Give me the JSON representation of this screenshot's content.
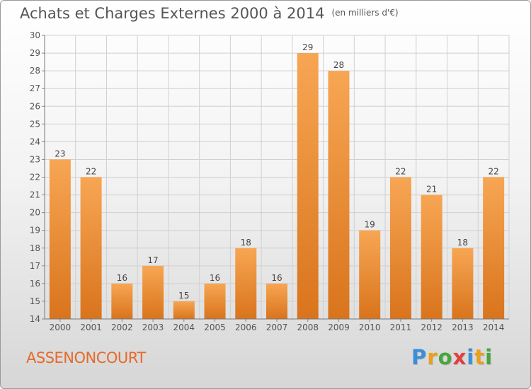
{
  "header": {
    "title": "Achats et Charges Externes 2000 à 2014",
    "unit": "(en milliers d'€)"
  },
  "footer": {
    "place": "ASSENONCOURT",
    "logo": "Proxiti"
  },
  "colors": {
    "bar_top": "#f7a654",
    "bar_bottom": "#d9741c",
    "grid": "#d0d0d0",
    "place_text": "#e56a2c"
  },
  "chart_data": {
    "type": "bar",
    "title": "Achats et Charges Externes 2000 à 2014",
    "subtitle": "(en milliers d'€)",
    "categories": [
      "2000",
      "2001",
      "2002",
      "2003",
      "2004",
      "2005",
      "2006",
      "2007",
      "2008",
      "2009",
      "2010",
      "2011",
      "2012",
      "2013",
      "2014"
    ],
    "values": [
      23,
      22,
      16,
      17,
      15,
      16,
      18,
      16,
      29,
      28,
      19,
      22,
      21,
      18,
      22
    ],
    "ylim": [
      14,
      30
    ],
    "yticks": [
      14,
      15,
      16,
      17,
      18,
      19,
      20,
      21,
      22,
      23,
      24,
      25,
      26,
      27,
      28,
      29,
      30
    ],
    "grid": true,
    "legend": "none"
  }
}
